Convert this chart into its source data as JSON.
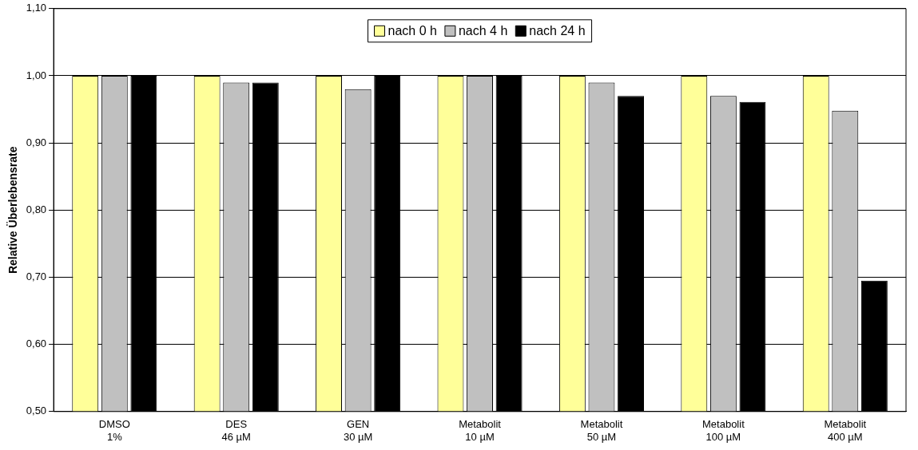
{
  "chart_data": {
    "type": "bar",
    "ylabel": "Relative Überlebensrate",
    "categories": [
      "DMSO\n1%",
      "DES\n46 µM",
      "GEN\n30 µM",
      "Metabolit\n10 µM",
      "Metabolit\n50 µM",
      "Metabolit\n100 µM",
      "Metabolit\n400 µM"
    ],
    "series": [
      {
        "name": "nach 0 h",
        "color": "#ffff99",
        "values": [
          1.0,
          1.0,
          1.0,
          1.0,
          1.0,
          1.0,
          1.0
        ]
      },
      {
        "name": "nach 4 h",
        "color": "#c0c0c0",
        "values": [
          1.0,
          0.99,
          0.98,
          1.0,
          0.99,
          0.97,
          0.948
        ]
      },
      {
        "name": "nach 24 h",
        "color": "#000000",
        "values": [
          1.0,
          0.99,
          1.0,
          1.0,
          0.97,
          0.961,
          0.695
        ]
      }
    ],
    "ylim": [
      0.5,
      1.1
    ],
    "yticks": [
      {
        "value": 0.5,
        "label": "0,50"
      },
      {
        "value": 0.6,
        "label": "0,60"
      },
      {
        "value": 0.7,
        "label": "0,70"
      },
      {
        "value": 0.8,
        "label": "0,80"
      },
      {
        "value": 0.9,
        "label": "0,90"
      },
      {
        "value": 1.0,
        "label": "1,00"
      },
      {
        "value": 1.1,
        "label": "1,10"
      }
    ],
    "grid": "y",
    "legend": "top"
  }
}
